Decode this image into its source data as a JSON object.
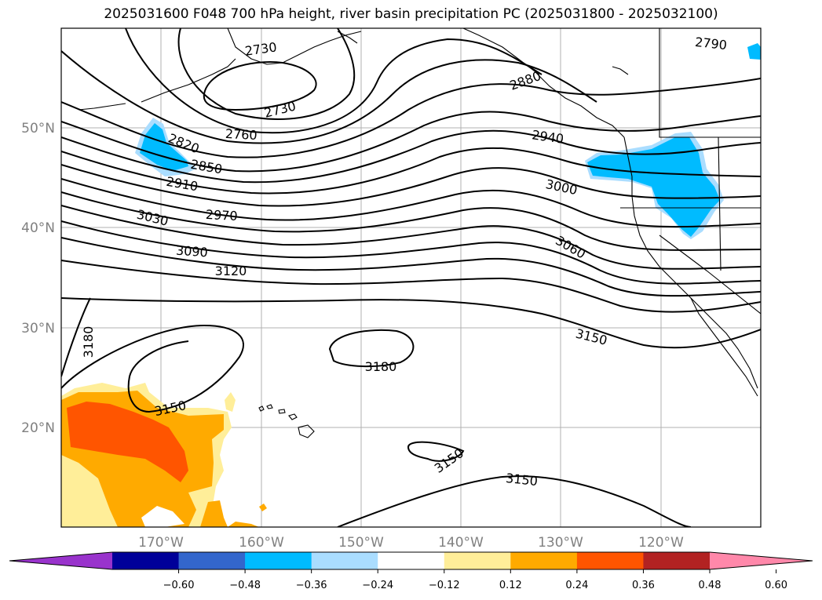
{
  "title": "2025031600 F048 700 hPa height, river basin precipitation PC (2025031800 - 2025032100)",
  "lat_labels": [
    "50°N",
    "40°N",
    "30°N",
    "20°N"
  ],
  "lon_labels": [
    "170°W",
    "160°W",
    "150°W",
    "140°W",
    "130°W",
    "120°W"
  ],
  "contour_labels": [
    "2730",
    "2730",
    "2760",
    "2790",
    "2820",
    "2850",
    "2880",
    "2910",
    "2940",
    "2970",
    "3000",
    "3030",
    "3060",
    "3090",
    "3120",
    "3150",
    "3150",
    "3150",
    "3150",
    "3180",
    "3180"
  ],
  "colorbar": {
    "colors": [
      "#9933cc",
      "#000099",
      "#3366cc",
      "#00bbff",
      "#aaddff",
      "#ffffff",
      "#ffee99",
      "#ffaa00",
      "#ff5500",
      "#b22222",
      "#ff88aa"
    ],
    "ticks": [
      "−0.60",
      "−0.48",
      "−0.36",
      "−0.24",
      "−0.12",
      "0.12",
      "0.24",
      "0.36",
      "0.48",
      "0.60"
    ]
  }
}
